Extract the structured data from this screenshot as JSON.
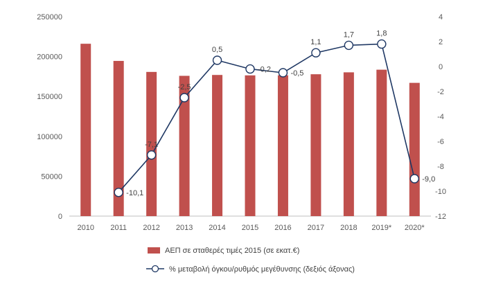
{
  "chart_data": {
    "type": "bar",
    "categories": [
      "2010",
      "2011",
      "2012",
      "2013",
      "2014",
      "2015",
      "2016",
      "2017",
      "2018",
      "2019*",
      "2020*"
    ],
    "series": [
      {
        "name": "ΑΕΠ σε σταθερές τιμές 2015 (σε εκατ.€)",
        "type": "bar",
        "axis": "left",
        "color": "#c0504d",
        "values": [
          216000,
          194500,
          180700,
          175800,
          176900,
          176400,
          176500,
          177800,
          180200,
          183500,
          167000
        ]
      },
      {
        "name": "% μεταβολή όγκου/ρυθμός μεγέθυνσης (δεξιός άξονας)",
        "type": "line",
        "axis": "right",
        "color": "#1f3864",
        "values": [
          null,
          -10.1,
          -7.1,
          -2.5,
          0.5,
          -0.2,
          -0.5,
          1.1,
          1.7,
          1.8,
          -9.0
        ],
        "labels": [
          "",
          "-10,1",
          "-7,1",
          "-2,5",
          "0,5",
          "-0,2",
          "-0,5",
          "1,1",
          "1,7",
          "1,8",
          "-9,0"
        ]
      }
    ],
    "y_left": {
      "range": [
        0,
        250000
      ],
      "ticks": [
        0,
        50000,
        100000,
        150000,
        200000,
        250000
      ],
      "tick_labels": [
        "0",
        "50000",
        "100000",
        "150000",
        "200000",
        "250000"
      ]
    },
    "y_right": {
      "range": [
        -12,
        4
      ],
      "ticks": [
        -12,
        -10,
        -8,
        -6,
        -4,
        -2,
        0,
        2,
        4
      ],
      "tick_labels": [
        "-12",
        "-10",
        "-8",
        "-6",
        "-4",
        "-2",
        "0",
        "2",
        "4"
      ]
    },
    "grid": false,
    "legend_position": "bottom"
  }
}
